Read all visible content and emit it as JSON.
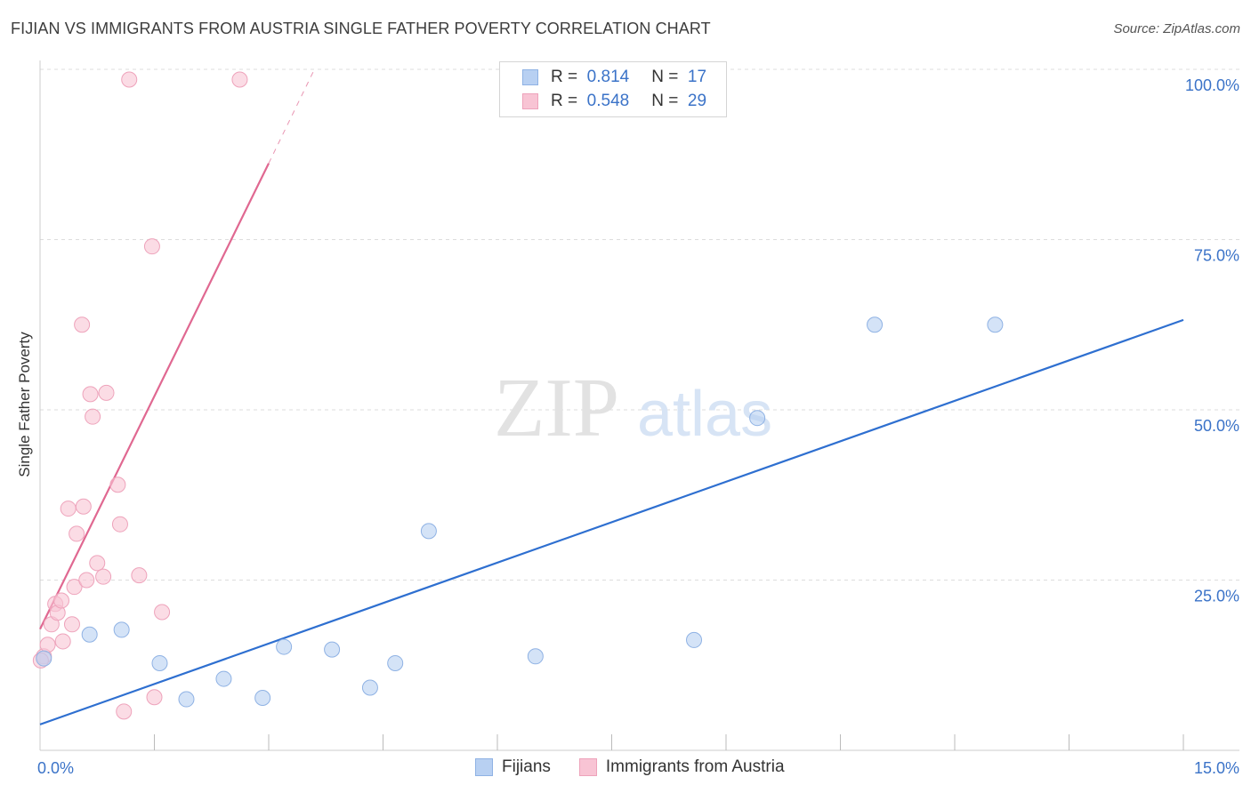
{
  "title": "FIJIAN VS IMMIGRANTS FROM AUSTRIA SINGLE FATHER POVERTY CORRELATION CHART",
  "source": "Source: ZipAtlas.com",
  "watermark": {
    "zip": "ZIP",
    "atlas": "atlas"
  },
  "legend_top": {
    "series": [
      {
        "r_label": "R =",
        "r_value": "0.814",
        "n_label": "N =",
        "n_value": "17"
      },
      {
        "r_label": "R =",
        "r_value": "0.548",
        "n_label": "N =",
        "n_value": "29"
      }
    ]
  },
  "legend_bottom": {
    "fijians": "Fijians",
    "austria": "Immigrants from Austria"
  },
  "colors": {
    "fijians_fill": "#b8d0f2",
    "fijians_stroke": "#8fb2e4",
    "fijians_line": "#2e6fd0",
    "austria_fill": "#f8c4d4",
    "austria_stroke": "#eea3bb",
    "austria_line": "#e06891",
    "axis_text": "#3b73c8",
    "grid": "#dddddd"
  },
  "chart_data": {
    "type": "scatter",
    "title": "FIJIAN VS IMMIGRANTS FROM AUSTRIA SINGLE FATHER POVERTY CORRELATION CHART",
    "xlabel": "",
    "ylabel": "Single Father Poverty",
    "xlim": [
      0,
      15
    ],
    "ylim": [
      0,
      100
    ],
    "x_tick_labels": [
      "0.0%",
      "15.0%"
    ],
    "y_tick_labels": [
      "100.0%",
      "75.0%",
      "50.0%",
      "25.0%"
    ],
    "y_ticks": [
      100,
      75,
      50,
      25
    ],
    "series": [
      {
        "name": "Fijians",
        "r": 0.814,
        "n": 17,
        "points": [
          {
            "x": 0.05,
            "y": 13.5
          },
          {
            "x": 0.65,
            "y": 17.0
          },
          {
            "x": 1.07,
            "y": 17.7
          },
          {
            "x": 1.57,
            "y": 12.8
          },
          {
            "x": 1.92,
            "y": 7.5
          },
          {
            "x": 2.41,
            "y": 10.5
          },
          {
            "x": 2.92,
            "y": 7.7
          },
          {
            "x": 3.2,
            "y": 15.2
          },
          {
            "x": 3.83,
            "y": 14.8
          },
          {
            "x": 4.33,
            "y": 9.2
          },
          {
            "x": 4.66,
            "y": 12.8
          },
          {
            "x": 5.1,
            "y": 32.2
          },
          {
            "x": 6.5,
            "y": 13.8
          },
          {
            "x": 8.58,
            "y": 16.2
          },
          {
            "x": 9.41,
            "y": 48.8
          },
          {
            "x": 10.95,
            "y": 62.5
          },
          {
            "x": 12.53,
            "y": 62.5
          }
        ],
        "trend": {
          "x": [
            0,
            15
          ],
          "y": [
            3.8,
            63.2
          ]
        }
      },
      {
        "name": "Immigrants from Austria",
        "r": 0.548,
        "n": 29,
        "points": [
          {
            "x": 0.05,
            "y": 13.8
          },
          {
            "x": 0.1,
            "y": 15.5
          },
          {
            "x": 0.15,
            "y": 18.5
          },
          {
            "x": 0.2,
            "y": 21.5
          },
          {
            "x": 0.23,
            "y": 20.2
          },
          {
            "x": 0.28,
            "y": 22.0
          },
          {
            "x": 0.3,
            "y": 16.0
          },
          {
            "x": 0.37,
            "y": 35.5
          },
          {
            "x": 0.42,
            "y": 18.5
          },
          {
            "x": 0.45,
            "y": 24.0
          },
          {
            "x": 0.48,
            "y": 31.8
          },
          {
            "x": 0.55,
            "y": 62.5
          },
          {
            "x": 0.57,
            "y": 35.8
          },
          {
            "x": 0.61,
            "y": 25.0
          },
          {
            "x": 0.66,
            "y": 52.3
          },
          {
            "x": 0.69,
            "y": 49.0
          },
          {
            "x": 0.75,
            "y": 27.5
          },
          {
            "x": 0.83,
            "y": 25.5
          },
          {
            "x": 0.87,
            "y": 52.5
          },
          {
            "x": 1.02,
            "y": 39.0
          },
          {
            "x": 1.05,
            "y": 33.2
          },
          {
            "x": 1.1,
            "y": 5.7
          },
          {
            "x": 1.17,
            "y": 98.5
          },
          {
            "x": 1.3,
            "y": 25.7
          },
          {
            "x": 1.47,
            "y": 74.0
          },
          {
            "x": 1.5,
            "y": 7.8
          },
          {
            "x": 1.6,
            "y": 20.3
          },
          {
            "x": 2.62,
            "y": 98.5
          },
          {
            "x": 0.01,
            "y": 13.2
          }
        ],
        "trend": {
          "x": [
            0,
            3.0
          ],
          "y": [
            17.8,
            86.2
          ]
        },
        "trend_dashed": {
          "x": [
            3.0,
            3.6
          ],
          "y": [
            86.2,
            100
          ]
        }
      }
    ]
  }
}
